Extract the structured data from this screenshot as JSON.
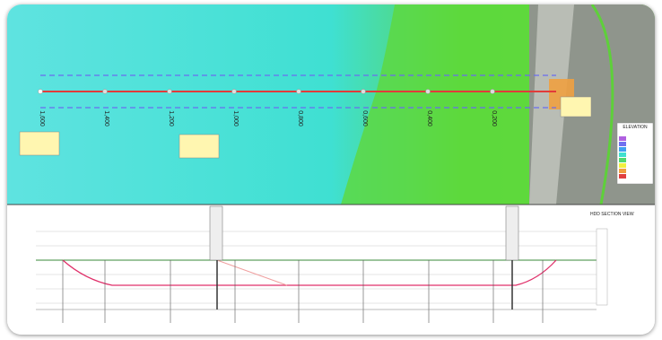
{
  "plan": {
    "chainages": [
      "1,600",
      "1,400",
      "1,200",
      "1,000",
      "0,800",
      "0,600",
      "0,400",
      "0,200"
    ],
    "legend_title": "ELEVATION"
  },
  "profile": {
    "title": "HDD SECTION VIEW"
  }
}
